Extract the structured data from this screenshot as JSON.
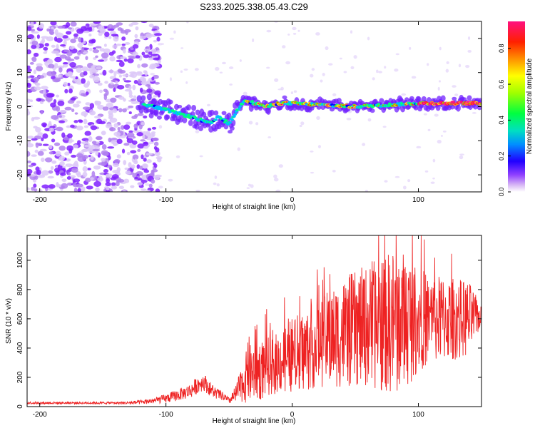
{
  "figure": {
    "title": "S233.2025.338.05.43.C29"
  },
  "chart_data": [
    {
      "type": "heatmap",
      "title": "S233.2025.338.05.43.C29",
      "xlabel": "Height of straight line (km)",
      "ylabel": "Frequency (Hz)",
      "xlim": [
        -210,
        150
      ],
      "ylim": [
        -25,
        25
      ],
      "x_ticks": [
        -200,
        -100,
        0,
        100
      ],
      "x_tick_labels": [
        "-200",
        "-100",
        "0",
        "100"
      ],
      "y_ticks": [
        -20,
        -10,
        0,
        10,
        20
      ],
      "y_tick_labels": [
        "-20",
        "-10",
        "0",
        "10",
        "20"
      ],
      "colorbar": {
        "label": "Normalized spectral amplitude",
        "range": [
          0,
          0.95
        ],
        "ticks": [
          0.0,
          0.2,
          0.4,
          0.6,
          0.8
        ],
        "tick_labels": [
          "0.0",
          "0.2",
          "0.4",
          "0.6",
          "0.8"
        ],
        "colors": [
          "#ffffff",
          "#c8a0f0",
          "#8000ff",
          "#0000ff",
          "#00c0ff",
          "#00ff80",
          "#80ff00",
          "#ffff00",
          "#ffa000",
          "#ff3000",
          "#ff0060",
          "#ff2090"
        ]
      },
      "features": {
        "noise_region_x": [
          -210,
          -120
        ],
        "ridge": [
          {
            "x": -120,
            "y": 1
          },
          {
            "x": -110,
            "y": 0
          },
          {
            "x": -100,
            "y": -1
          },
          {
            "x": -90,
            "y": -2
          },
          {
            "x": -80,
            "y": -3
          },
          {
            "x": -72,
            "y": -4
          },
          {
            "x": -65,
            "y": -5
          },
          {
            "x": -58,
            "y": -3
          },
          {
            "x": -50,
            "y": -5
          },
          {
            "x": -45,
            "y": -2
          },
          {
            "x": -38,
            "y": 2
          },
          {
            "x": -30,
            "y": 1
          },
          {
            "x": -20,
            "y": 0
          },
          {
            "x": -10,
            "y": 1
          },
          {
            "x": 0,
            "y": 1
          },
          {
            "x": 50,
            "y": 0
          },
          {
            "x": 100,
            "y": 1
          },
          {
            "x": 150,
            "y": 1
          }
        ]
      }
    },
    {
      "type": "line",
      "xlabel": "Height of straight line (km)",
      "ylabel": "SNR (10 * v/v)",
      "xlim": [
        -210,
        150
      ],
      "ylim": [
        0,
        1170
      ],
      "x_ticks": [
        -200,
        -100,
        0,
        100
      ],
      "x_tick_labels": [
        "-200",
        "-100",
        "0",
        "100"
      ],
      "y_ticks": [
        0,
        200,
        400,
        600,
        800,
        1000
      ],
      "y_tick_labels": [
        "0",
        "200",
        "400",
        "600",
        "800",
        "1000"
      ],
      "color": "#ee2222",
      "series": [
        {
          "name": "SNR",
          "x": [
            -210,
            -200,
            -190,
            -180,
            -170,
            -160,
            -150,
            -140,
            -130,
            -120,
            -110,
            -100,
            -90,
            -80,
            -75,
            -70,
            -65,
            -60,
            -55,
            -50,
            -45,
            -40,
            -35,
            -30,
            -25,
            -20,
            -15,
            -10,
            -5,
            0,
            10,
            20,
            30,
            40,
            50,
            60,
            70,
            80,
            90,
            100,
            110,
            120,
            130,
            140,
            150
          ],
          "mean": [
            25,
            25,
            25,
            25,
            25,
            25,
            25,
            25,
            25,
            30,
            40,
            55,
            80,
            110,
            150,
            170,
            120,
            90,
            70,
            40,
            80,
            150,
            220,
            240,
            250,
            270,
            280,
            310,
            330,
            350,
            380,
            430,
            470,
            500,
            530,
            550,
            560,
            580,
            590,
            600,
            600,
            600,
            600,
            600,
            620
          ],
          "spread": [
            8,
            8,
            8,
            8,
            8,
            8,
            8,
            8,
            10,
            15,
            20,
            30,
            40,
            50,
            60,
            60,
            50,
            40,
            30,
            20,
            60,
            120,
            200,
            200,
            210,
            200,
            200,
            220,
            240,
            260,
            280,
            300,
            330,
            380,
            400,
            420,
            460,
            500,
            480,
            360,
            300,
            300,
            280,
            260,
            60
          ]
        }
      ]
    }
  ]
}
